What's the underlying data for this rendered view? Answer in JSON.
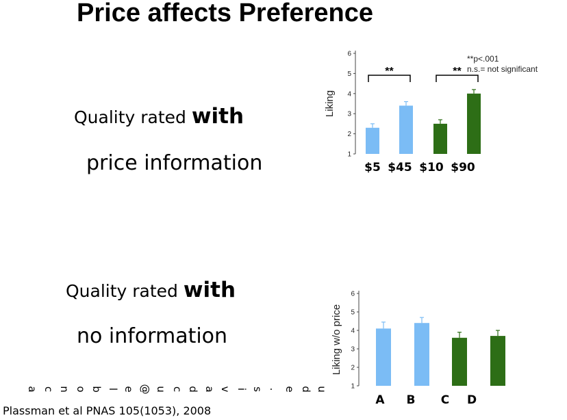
{
  "slide": {
    "title": "Price affects Preference",
    "block1": {
      "pre": "Quality rated ",
      "emph": "with",
      "line2": "price information"
    },
    "block2": {
      "pre": "Quality rated ",
      "emph": "with",
      "line2": "no information"
    },
    "email": "acnoble@ucdavis.edu",
    "citation": "Plassman et al PNAS 105(1053), 2008"
  },
  "chart_data": [
    {
      "type": "bar",
      "categories": [
        "$5",
        "$45",
        "$10",
        "$90"
      ],
      "values": [
        2.3,
        3.4,
        2.5,
        4.0
      ],
      "errors": [
        0.2,
        0.2,
        0.2,
        0.2
      ],
      "bar_colors": [
        "#7bbcf5",
        "#7bbcf5",
        "#2d6e16",
        "#2d6e16"
      ],
      "ylabel": "Liking",
      "ylim": [
        1,
        6
      ],
      "yticks": [
        "1",
        "2",
        "3",
        "4",
        "5",
        "6"
      ],
      "annotations": [
        "**",
        "**"
      ],
      "notes": [
        "**p<.001",
        "n.s.= not significant"
      ]
    },
    {
      "type": "bar",
      "categories": [
        "A",
        "B",
        "C",
        "D"
      ],
      "values": [
        4.1,
        4.4,
        3.6,
        3.7
      ],
      "errors": [
        0.35,
        0.3,
        0.3,
        0.3
      ],
      "bar_colors": [
        "#7bbcf5",
        "#7bbcf5",
        "#2d6e16",
        "#2d6e16"
      ],
      "ylabel": "Liking w/o price",
      "ylim": [
        1,
        6
      ],
      "yticks": [
        "1",
        "2",
        "3",
        "4",
        "5",
        "6"
      ]
    }
  ]
}
